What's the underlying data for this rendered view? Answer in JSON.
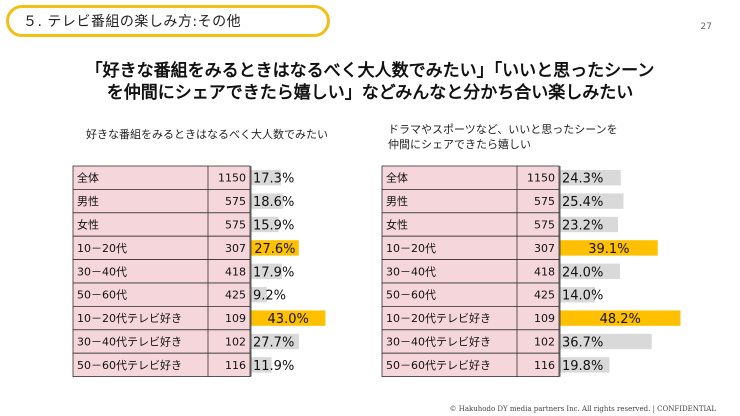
{
  "header": {
    "section_title": "５. テレビ番組の楽しみ方:その他",
    "page_number": "27"
  },
  "headline": {
    "line1": "「好きな番組をみるときはなるべく大人数でみたい」「いいと思ったシーン",
    "line2": "を仲間にシェアできたら嬉しい」などみんなと分かち合い楽しみたい"
  },
  "colors": {
    "row_fill": "#F5D6DA",
    "bar_gray": "#D9D9D9",
    "bar_highlight": "#FFC000",
    "border": "#333333",
    "accent": "#F2BF14"
  },
  "chart_data": [
    {
      "type": "bar",
      "title_lines": [
        "好きな番組をみるときはなるべく大人数でみたい"
      ],
      "categories": [
        "全体",
        "男性",
        "女性",
        "10－20代",
        "30－40代",
        "50－60代",
        "10－20代テレビ好き",
        "30－40代テレビ好き",
        "50－60代テレビ好き"
      ],
      "n": [
        1150,
        575,
        575,
        307,
        418,
        425,
        109,
        102,
        116
      ],
      "values": [
        17.3,
        18.6,
        15.9,
        27.6,
        17.9,
        9.2,
        43.0,
        27.7,
        11.9
      ],
      "value_labels": [
        "17.3%",
        "18.6%",
        "15.9%",
        "27.6%",
        "17.9%",
        "9.2%",
        "43.0%",
        "27.7%",
        "11.9%"
      ],
      "highlight": [
        false,
        false,
        false,
        true,
        false,
        false,
        true,
        false,
        false
      ],
      "unit": "%"
    },
    {
      "type": "bar",
      "title_lines": [
        "ドラマやスポーツなど、いいと思ったシーンを",
        "仲間にシェアできたら嬉しい"
      ],
      "categories": [
        "全体",
        "男性",
        "女性",
        "10－20代",
        "30－40代",
        "50－60代",
        "10－20代テレビ好き",
        "30－40代テレビ好き",
        "50－60代テレビ好き"
      ],
      "n": [
        1150,
        575,
        575,
        307,
        418,
        425,
        109,
        102,
        116
      ],
      "values": [
        24.3,
        25.4,
        23.2,
        39.1,
        24.0,
        14.0,
        48.2,
        36.7,
        19.8
      ],
      "value_labels": [
        "24.3%",
        "25.4%",
        "23.2%",
        "39.1%",
        "24.0%",
        "14.0%",
        "48.2%",
        "36.7%",
        "19.8%"
      ],
      "highlight": [
        false,
        false,
        false,
        true,
        false,
        false,
        true,
        false,
        false
      ],
      "unit": "%"
    }
  ],
  "footer": {
    "copyright": "© Hakuhodo DY media partners Inc. All rights reserved. | CONFIDENTIAL"
  }
}
